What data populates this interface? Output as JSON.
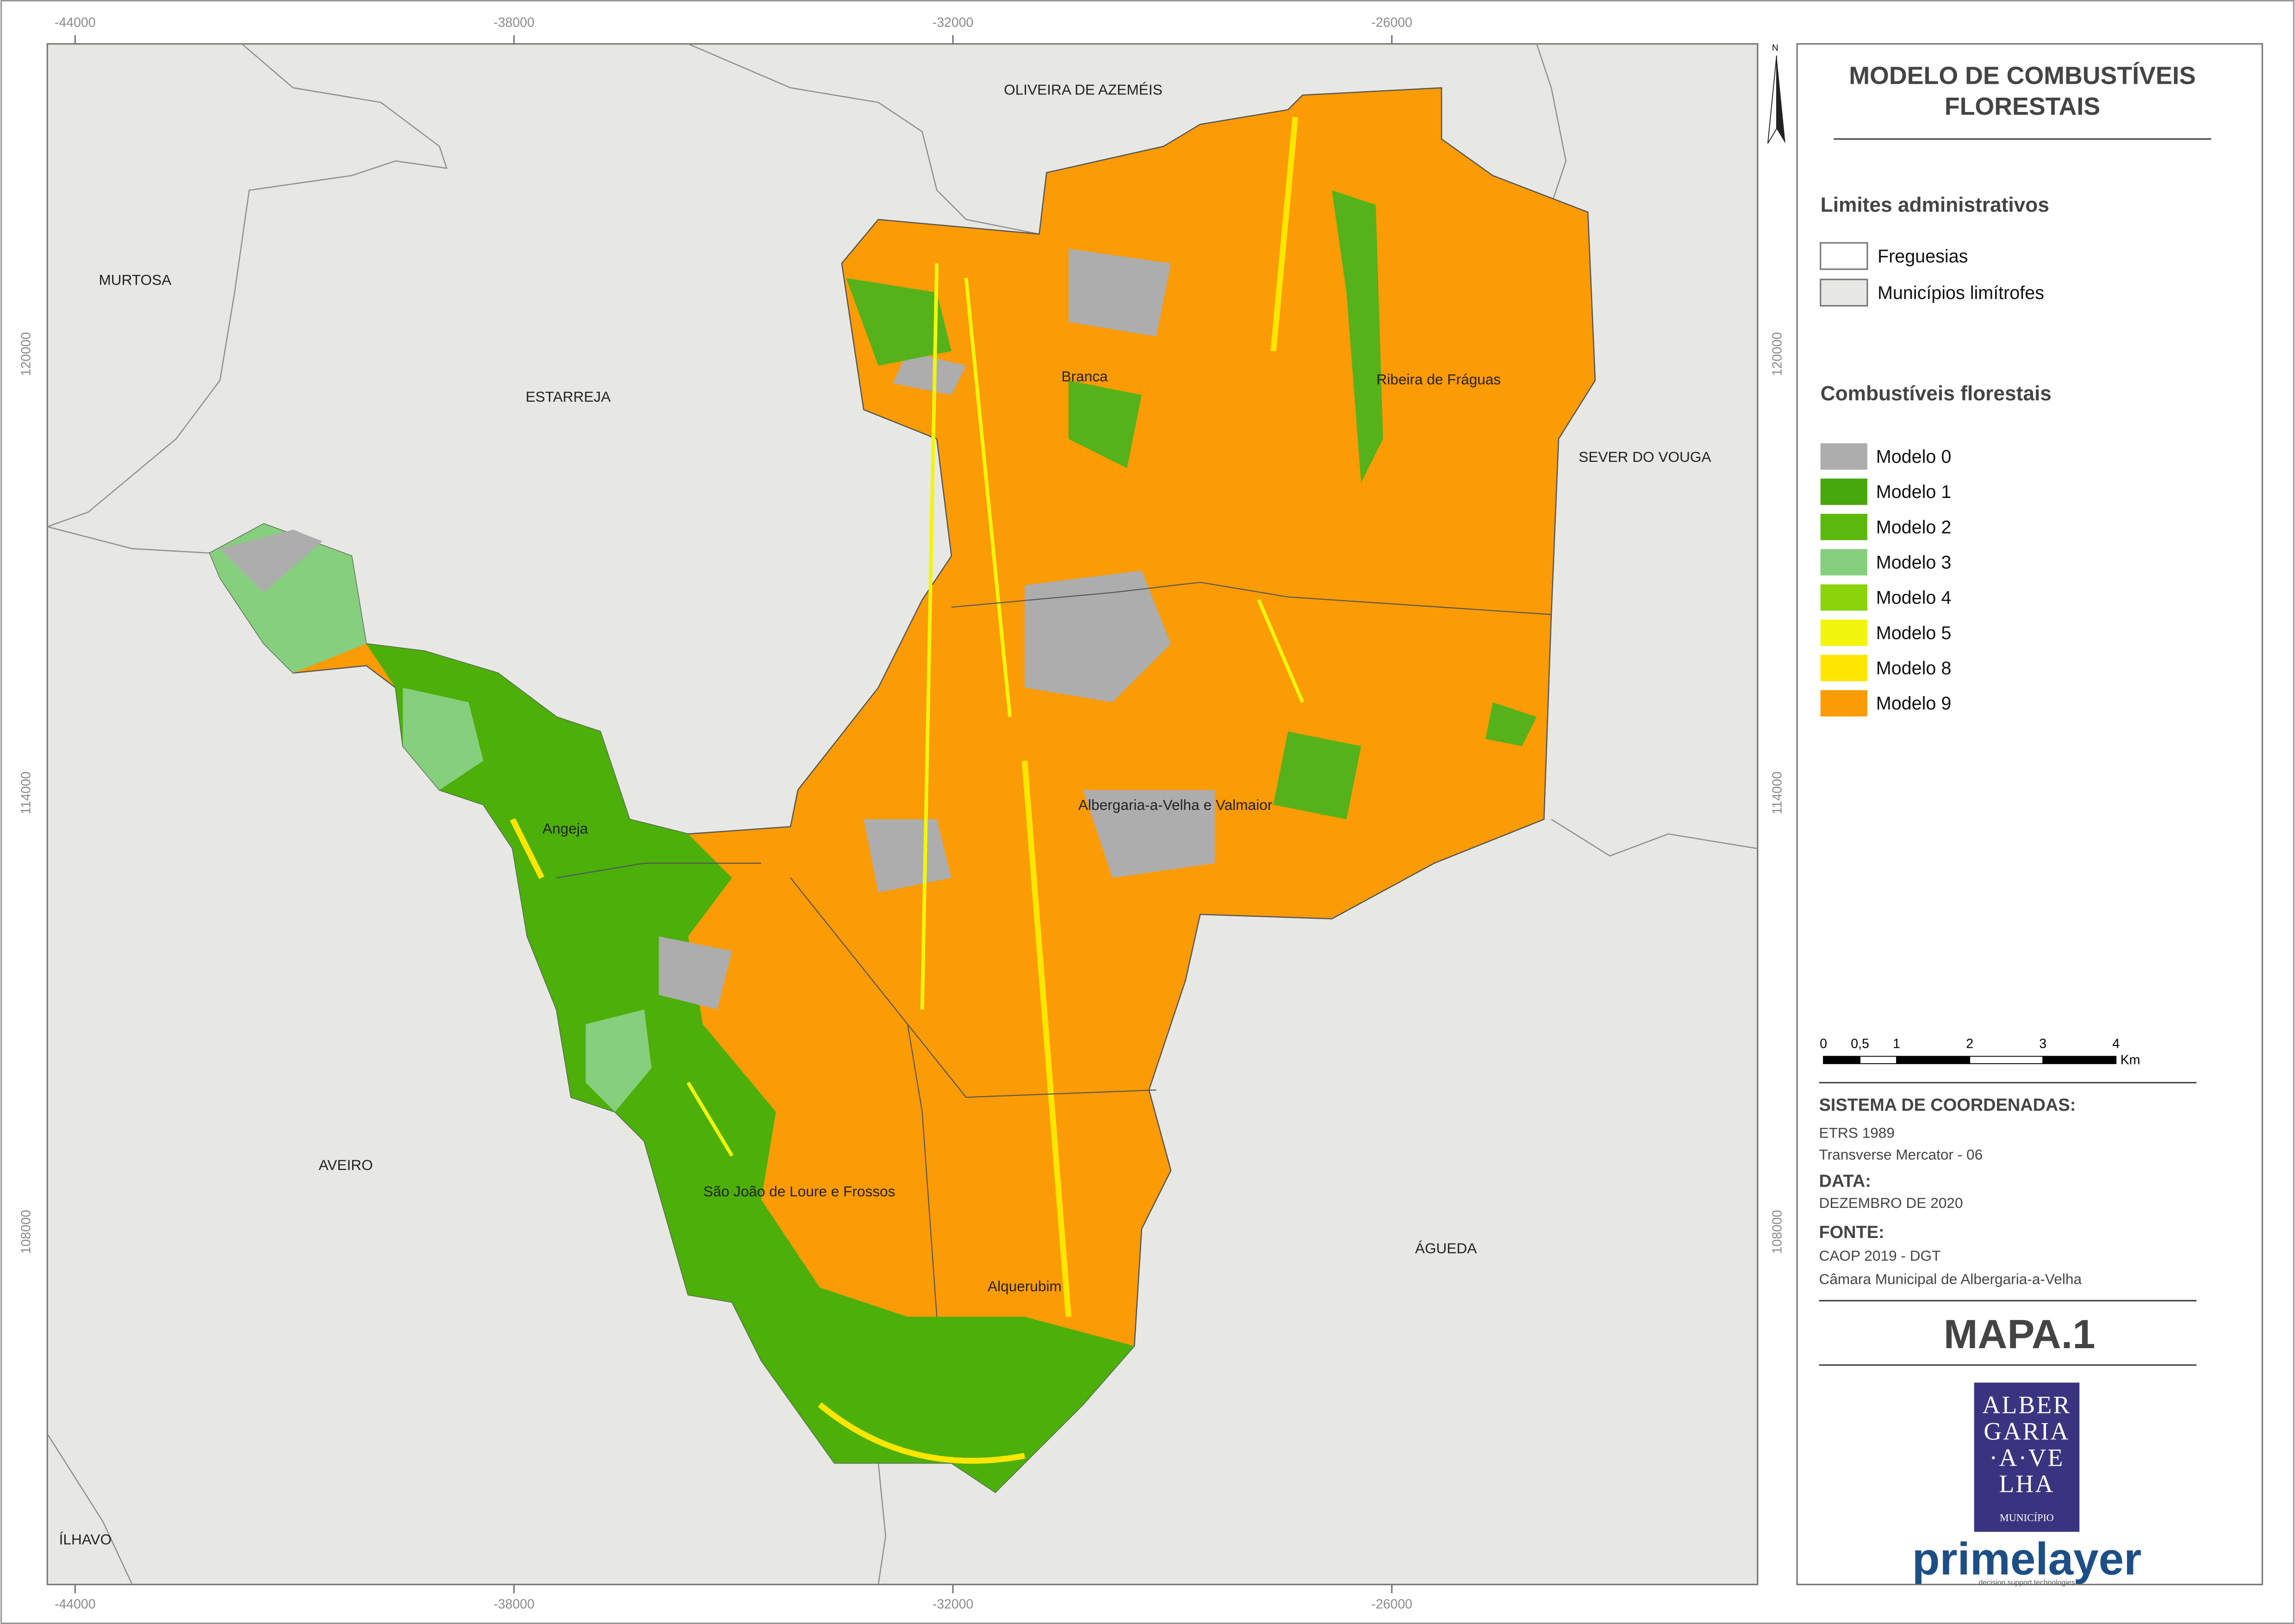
{
  "map": {
    "title_lines": [
      "MODELO DE COMBUSTÍVEIS",
      "FLORESTAIS"
    ],
    "north": "N",
    "x_labels": [
      "-44000",
      "-38000",
      "-32000",
      "-26000"
    ],
    "y_labels": [
      "120000",
      "114000",
      "108000"
    ],
    "neighbours": [
      "MURTOSA",
      "ESTARREJA",
      "OLIVEIRA DE AZEMÉIS",
      "SEVER DO VOUGA",
      "AVEIRO",
      "ÁGUEDA",
      "ÍLHAVO"
    ],
    "parishes": [
      "Branca",
      "Ribeira de Fráguas",
      "Angeja",
      "Albergaria-a-Velha e Valmaior",
      "São João de Loure e Frossos",
      "Alquerubim"
    ]
  },
  "legend": {
    "admin_title": "Limites administrativos",
    "admin_items": [
      "Freguesias",
      "Municípios limítrofes"
    ],
    "fuel_title": "Combustíveis florestais",
    "fuel_items": [
      "Modelo 0",
      "Modelo 1",
      "Modelo 2",
      "Modelo 3",
      "Modelo 4",
      "Modelo 5",
      "Modelo 8",
      "Modelo 9"
    ]
  },
  "scale": {
    "labels": [
      "0",
      "0,5",
      "1",
      "2",
      "3",
      "4"
    ],
    "unit": "Km"
  },
  "info": {
    "coord_title": "SISTEMA DE COORDENADAS:",
    "coord_lines": [
      "ETRS 1989",
      "Transverse Mercator - 06"
    ],
    "date_title": "DATA:",
    "date": "DEZEMBRO DE 2020",
    "source_title": "FONTE:",
    "source_lines": [
      "CAOP 2019 - DGT",
      "Câmara Municipal de Albergaria-a-Velha"
    ]
  },
  "map_id": "MAPA.1",
  "logo": {
    "lines": [
      "ALBER",
      "GARIA",
      "·A·VE",
      "LHA"
    ],
    "sub": "MUNICÍPIO"
  },
  "brand": "primelayer",
  "brand_tag": "decision support technologies"
}
